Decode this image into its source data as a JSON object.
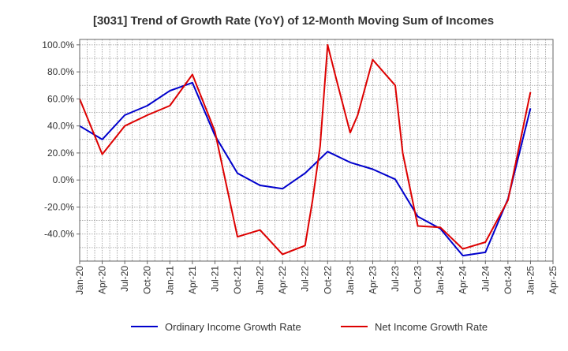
{
  "chart_data": {
    "type": "line",
    "title": "[3031]  Trend of Growth Rate (YoY) of 12-Month Moving Sum of Incomes",
    "xlabel": "",
    "ylabel": "",
    "x_ticks": [
      "Jan-20",
      "Apr-20",
      "Jul-20",
      "Oct-20",
      "Jan-21",
      "Apr-21",
      "Jul-21",
      "Oct-21",
      "Jan-22",
      "Apr-22",
      "Jul-22",
      "Oct-22",
      "Jan-23",
      "Apr-23",
      "Jul-23",
      "Oct-23",
      "Jan-24",
      "Apr-24",
      "Jul-24",
      "Oct-24",
      "Jan-25",
      "Apr-25"
    ],
    "y_ticks": [
      "100.0%",
      "80.0%",
      "60.0%",
      "40.0%",
      "20.0%",
      "0.0%",
      "-20.0%",
      "-40.0%"
    ],
    "y_tick_values": [
      100,
      80,
      60,
      40,
      20,
      0,
      -20,
      -40
    ],
    "ylim": [
      -60,
      104
    ],
    "grid": true,
    "legend_position": "bottom",
    "series": [
      {
        "name": "Ordinary Income Growth Rate",
        "color": "#0000cc",
        "points": [
          [
            "Jan-20",
            40
          ],
          [
            "Apr-20",
            30
          ],
          [
            "Jul-20",
            48
          ],
          [
            "Oct-20",
            55
          ],
          [
            "Jan-21",
            66
          ],
          [
            "Apr-21",
            72
          ],
          [
            "Jul-21",
            33
          ],
          [
            "Oct-21",
            5
          ],
          [
            "Jan-22",
            -4
          ],
          [
            "Apr-22",
            -6.5
          ],
          [
            "Jul-22",
            5
          ],
          [
            "Oct-22",
            21
          ],
          [
            "Jan-23",
            13
          ],
          [
            "Apr-23",
            8
          ],
          [
            "Jul-23",
            0.5
          ],
          [
            "Oct-23",
            -27
          ],
          [
            "Jan-24",
            -36
          ],
          [
            "Apr-24",
            -56
          ],
          [
            "Jul-24",
            -53.5
          ],
          [
            "Oct-24",
            -14
          ],
          [
            "Jan-25",
            53
          ]
        ]
      },
      {
        "name": "Net Income Growth Rate",
        "color": "#dd0000",
        "points": [
          [
            "Jan-20",
            60
          ],
          [
            "Apr-20",
            19
          ],
          [
            "Jul-20",
            40
          ],
          [
            "Oct-20",
            48
          ],
          [
            "Jan-21",
            55
          ],
          [
            "Apr-21",
            78
          ],
          [
            "Jul-21",
            36
          ],
          [
            "Oct-21",
            -42
          ],
          [
            "Jan-22",
            -37
          ],
          [
            "Apr-22",
            -55
          ],
          [
            "Jul-22",
            -48.5
          ],
          [
            "Aug-22",
            -15
          ],
          [
            "Sep-22",
            25
          ],
          [
            "Oct-22",
            100
          ],
          [
            "Nov-22",
            78
          ],
          [
            "Jan-23",
            35
          ],
          [
            "Feb-23",
            48
          ],
          [
            "Apr-23",
            89
          ],
          [
            "Jul-23",
            70
          ],
          [
            "Aug-23",
            20
          ],
          [
            "Oct-23",
            -34
          ],
          [
            "Jan-24",
            -35
          ],
          [
            "Apr-24",
            -51
          ],
          [
            "Jul-24",
            -46
          ],
          [
            "Oct-24",
            -15
          ],
          [
            "Jan-25",
            65
          ]
        ]
      }
    ]
  }
}
